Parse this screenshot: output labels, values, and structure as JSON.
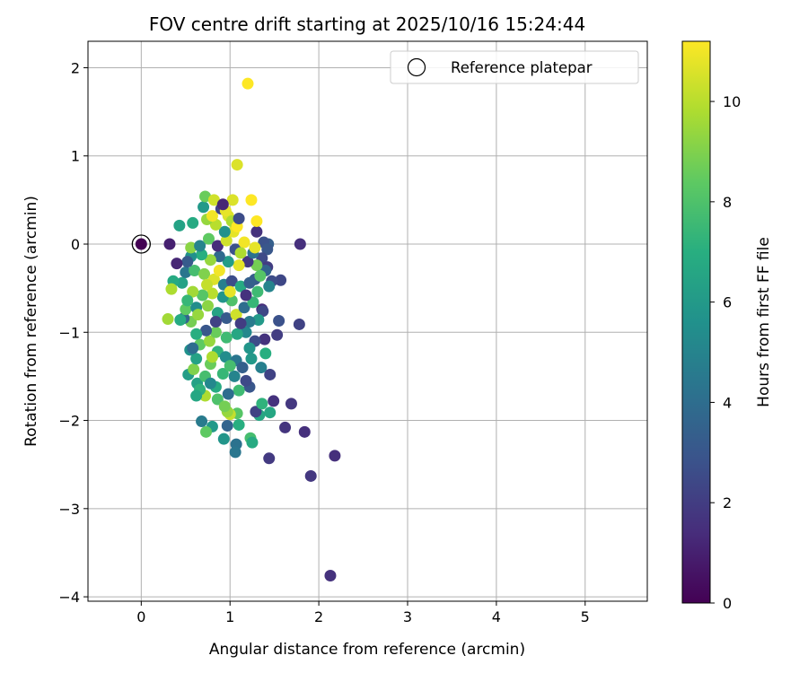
{
  "chart_data": {
    "type": "scatter",
    "title": "FOV centre drift starting at 2025/10/16 15:24:44",
    "xlabel": "Angular distance from reference (arcmin)",
    "ylabel": "Rotation from reference (arcmin)",
    "xlim": [
      -0.6,
      5.7
    ],
    "ylim": [
      -4.05,
      2.3
    ],
    "xticks": [
      0,
      1,
      2,
      3,
      4,
      5
    ],
    "yticks": [
      -4,
      -3,
      -2,
      -1,
      0,
      1,
      2
    ],
    "xtick_labels": [
      "0",
      "1",
      "2",
      "3",
      "4",
      "5"
    ],
    "ytick_labels": [
      "−4",
      "−3",
      "−2",
      "−1",
      "0",
      "1",
      "2"
    ],
    "grid": true,
    "legend": {
      "position": "top-right",
      "label": "Reference platepar"
    },
    "reference_point": {
      "x": 0,
      "y": 0
    },
    "colorbar": {
      "label": "Hours from first FF file",
      "colormap": "viridis",
      "range": [
        0,
        11.2
      ],
      "ticks": [
        0,
        2,
        4,
        6,
        8,
        10
      ],
      "tick_labels": [
        "0",
        "2",
        "4",
        "6",
        "8",
        "10"
      ]
    },
    "points": [
      {
        "x": 0.0,
        "y": 0.0,
        "h": 0.0
      },
      {
        "x": 0.32,
        "y": 0.0,
        "h": 1.0
      },
      {
        "x": 1.79,
        "y": 0.0,
        "h": 1.5
      },
      {
        "x": 2.13,
        "y": -3.76,
        "h": 1.6
      },
      {
        "x": 2.18,
        "y": -2.4,
        "h": 1.5
      },
      {
        "x": 1.91,
        "y": -2.63,
        "h": 1.8
      },
      {
        "x": 1.84,
        "y": -2.13,
        "h": 1.5
      },
      {
        "x": 1.44,
        "y": -2.43,
        "h": 1.9
      },
      {
        "x": 1.62,
        "y": -2.08,
        "h": 1.7
      },
      {
        "x": 1.69,
        "y": -1.81,
        "h": 1.8
      },
      {
        "x": 1.49,
        "y": -1.78,
        "h": 1.6
      },
      {
        "x": 1.78,
        "y": -0.91,
        "h": 2.2
      },
      {
        "x": 1.53,
        "y": -1.03,
        "h": 2.0
      },
      {
        "x": 1.57,
        "y": -0.41,
        "h": 2.4
      },
      {
        "x": 1.55,
        "y": -0.87,
        "h": 2.8
      },
      {
        "x": 1.45,
        "y": -1.48,
        "h": 2.2
      },
      {
        "x": 1.39,
        "y": -1.08,
        "h": 1.6
      },
      {
        "x": 1.43,
        "y": 0.0,
        "h": 3.4
      },
      {
        "x": 1.38,
        "y": 0.02,
        "h": 2.8
      },
      {
        "x": 1.42,
        "y": -0.06,
        "h": 3.0
      },
      {
        "x": 1.3,
        "y": 0.14,
        "h": 1.6
      },
      {
        "x": 1.36,
        "y": -0.16,
        "h": 2.5
      },
      {
        "x": 1.42,
        "y": -0.26,
        "h": 2.0
      },
      {
        "x": 1.28,
        "y": -0.4,
        "h": 3.2
      },
      {
        "x": 1.47,
        "y": -0.42,
        "h": 2.6
      },
      {
        "x": 1.36,
        "y": -0.74,
        "h": 1.4
      },
      {
        "x": 1.33,
        "y": -1.94,
        "h": 6.6
      },
      {
        "x": 1.45,
        "y": -1.91,
        "h": 6.6
      },
      {
        "x": 1.29,
        "y": -1.9,
        "h": 2.2
      },
      {
        "x": 1.36,
        "y": -1.81,
        "h": 7.2
      },
      {
        "x": 1.22,
        "y": -1.62,
        "h": 3.0
      },
      {
        "x": 1.23,
        "y": -2.2,
        "h": 7.8
      },
      {
        "x": 1.25,
        "y": -2.25,
        "h": 6.8
      },
      {
        "x": 1.07,
        "y": -2.27,
        "h": 4.2
      },
      {
        "x": 1.06,
        "y": -2.36,
        "h": 4.4
      },
      {
        "x": 0.93,
        "y": -2.21,
        "h": 5.8
      },
      {
        "x": 0.97,
        "y": -2.06,
        "h": 3.6
      },
      {
        "x": 0.8,
        "y": -2.07,
        "h": 6.0
      },
      {
        "x": 0.73,
        "y": -2.13,
        "h": 8.4
      },
      {
        "x": 0.68,
        "y": -2.01,
        "h": 4.6
      },
      {
        "x": 1.08,
        "y": -1.92,
        "h": 8.2
      },
      {
        "x": 1.0,
        "y": -1.93,
        "h": 10.2
      },
      {
        "x": 1.1,
        "y": -2.05,
        "h": 7.0
      },
      {
        "x": 0.97,
        "y": -1.9,
        "h": 9.4
      },
      {
        "x": 0.86,
        "y": -1.76,
        "h": 8.0
      },
      {
        "x": 0.72,
        "y": -1.72,
        "h": 9.8
      },
      {
        "x": 0.63,
        "y": -1.58,
        "h": 6.4
      },
      {
        "x": 0.66,
        "y": -1.65,
        "h": 7.2
      },
      {
        "x": 0.53,
        "y": -1.48,
        "h": 6.2
      },
      {
        "x": 0.59,
        "y": -1.42,
        "h": 9.0
      },
      {
        "x": 0.78,
        "y": -1.36,
        "h": 8.6
      },
      {
        "x": 0.92,
        "y": -1.47,
        "h": 7.4
      },
      {
        "x": 1.05,
        "y": -1.5,
        "h": 5.0
      },
      {
        "x": 1.18,
        "y": -1.55,
        "h": 2.5
      },
      {
        "x": 1.1,
        "y": -1.66,
        "h": 7.6
      },
      {
        "x": 0.98,
        "y": -1.7,
        "h": 4.0
      },
      {
        "x": 0.84,
        "y": -1.62,
        "h": 6.8
      },
      {
        "x": 0.72,
        "y": -1.5,
        "h": 7.8
      },
      {
        "x": 0.62,
        "y": -1.3,
        "h": 6.4
      },
      {
        "x": 0.55,
        "y": -1.2,
        "h": 5.6
      },
      {
        "x": 0.66,
        "y": -1.14,
        "h": 8.4
      },
      {
        "x": 0.77,
        "y": -1.1,
        "h": 9.4
      },
      {
        "x": 0.86,
        "y": -1.22,
        "h": 7.2
      },
      {
        "x": 0.95,
        "y": -1.28,
        "h": 5.4
      },
      {
        "x": 1.07,
        "y": -1.32,
        "h": 4.4
      },
      {
        "x": 1.14,
        "y": -1.4,
        "h": 3.4
      },
      {
        "x": 1.24,
        "y": -1.3,
        "h": 6.0
      },
      {
        "x": 1.35,
        "y": -1.4,
        "h": 4.8
      },
      {
        "x": 1.4,
        "y": -1.24,
        "h": 7.0
      },
      {
        "x": 1.28,
        "y": -1.1,
        "h": 2.6
      },
      {
        "x": 1.18,
        "y": -1.0,
        "h": 5.2
      },
      {
        "x": 1.08,
        "y": -1.02,
        "h": 6.6
      },
      {
        "x": 0.96,
        "y": -1.06,
        "h": 7.6
      },
      {
        "x": 0.84,
        "y": -1.0,
        "h": 8.6
      },
      {
        "x": 0.73,
        "y": -0.98,
        "h": 3.0
      },
      {
        "x": 0.62,
        "y": -1.02,
        "h": 7.0
      },
      {
        "x": 0.56,
        "y": -0.88,
        "h": 8.8
      },
      {
        "x": 0.48,
        "y": -0.84,
        "h": 3.6
      },
      {
        "x": 0.44,
        "y": -0.86,
        "h": 6.8
      },
      {
        "x": 0.3,
        "y": -0.85,
        "h": 9.6
      },
      {
        "x": 0.5,
        "y": -0.74,
        "h": 8.4
      },
      {
        "x": 0.62,
        "y": -0.72,
        "h": 5.4
      },
      {
        "x": 0.75,
        "y": -0.7,
        "h": 9.2
      },
      {
        "x": 0.86,
        "y": -0.78,
        "h": 6.4
      },
      {
        "x": 0.96,
        "y": -0.84,
        "h": 3.2
      },
      {
        "x": 1.07,
        "y": -0.8,
        "h": 10.4
      },
      {
        "x": 1.16,
        "y": -0.72,
        "h": 4.0
      },
      {
        "x": 1.26,
        "y": -0.66,
        "h": 7.4
      },
      {
        "x": 1.37,
        "y": -0.76,
        "h": 2.4
      },
      {
        "x": 1.32,
        "y": -0.86,
        "h": 6.0
      },
      {
        "x": 1.22,
        "y": -0.88,
        "h": 4.6
      },
      {
        "x": 1.12,
        "y": -0.9,
        "h": 2.0
      },
      {
        "x": 1.02,
        "y": -0.64,
        "h": 8.0
      },
      {
        "x": 0.92,
        "y": -0.6,
        "h": 5.8
      },
      {
        "x": 0.8,
        "y": -0.56,
        "h": 10.0
      },
      {
        "x": 0.69,
        "y": -0.58,
        "h": 8.2
      },
      {
        "x": 0.58,
        "y": -0.54,
        "h": 9.6
      },
      {
        "x": 0.46,
        "y": -0.44,
        "h": 6.4
      },
      {
        "x": 0.36,
        "y": -0.42,
        "h": 6.8
      },
      {
        "x": 0.34,
        "y": -0.51,
        "h": 9.8
      },
      {
        "x": 0.5,
        "y": -0.32,
        "h": 4.4
      },
      {
        "x": 0.6,
        "y": -0.3,
        "h": 7.8
      },
      {
        "x": 0.71,
        "y": -0.34,
        "h": 9.0
      },
      {
        "x": 0.82,
        "y": -0.4,
        "h": 10.6
      },
      {
        "x": 0.93,
        "y": -0.46,
        "h": 4.8
      },
      {
        "x": 1.02,
        "y": -0.42,
        "h": 2.6
      },
      {
        "x": 1.12,
        "y": -0.48,
        "h": 6.8
      },
      {
        "x": 1.22,
        "y": -0.44,
        "h": 3.4
      },
      {
        "x": 1.31,
        "y": -0.54,
        "h": 7.6
      },
      {
        "x": 1.44,
        "y": -0.48,
        "h": 5.0
      },
      {
        "x": 1.4,
        "y": -0.3,
        "h": 3.6
      },
      {
        "x": 1.3,
        "y": -0.24,
        "h": 8.8
      },
      {
        "x": 1.2,
        "y": -0.2,
        "h": 1.8
      },
      {
        "x": 1.1,
        "y": -0.24,
        "h": 10.8
      },
      {
        "x": 0.98,
        "y": -0.2,
        "h": 6.2
      },
      {
        "x": 0.88,
        "y": -0.14,
        "h": 3.8
      },
      {
        "x": 0.78,
        "y": -0.18,
        "h": 9.4
      },
      {
        "x": 0.68,
        "y": -0.12,
        "h": 7.0
      },
      {
        "x": 0.56,
        "y": -0.14,
        "h": 5.6
      },
      {
        "x": 0.52,
        "y": -0.2,
        "h": 3.2
      },
      {
        "x": 0.4,
        "y": -0.22,
        "h": 1.2
      },
      {
        "x": 0.56,
        "y": -0.04,
        "h": 9.2
      },
      {
        "x": 0.66,
        "y": -0.02,
        "h": 5.0
      },
      {
        "x": 0.76,
        "y": 0.06,
        "h": 8.4
      },
      {
        "x": 0.86,
        "y": -0.02,
        "h": 1.4
      },
      {
        "x": 0.96,
        "y": 0.04,
        "h": 10.4
      },
      {
        "x": 1.06,
        "y": -0.06,
        "h": 2.8
      },
      {
        "x": 1.16,
        "y": 0.02,
        "h": 11.0
      },
      {
        "x": 1.26,
        "y": -0.1,
        "h": 4.2
      },
      {
        "x": 1.04,
        "y": 0.14,
        "h": 10.8
      },
      {
        "x": 0.94,
        "y": 0.14,
        "h": 5.6
      },
      {
        "x": 0.84,
        "y": 0.22,
        "h": 10.0
      },
      {
        "x": 0.74,
        "y": 0.28,
        "h": 9.4
      },
      {
        "x": 0.58,
        "y": 0.24,
        "h": 6.8
      },
      {
        "x": 0.43,
        "y": 0.21,
        "h": 6.4
      },
      {
        "x": 0.7,
        "y": 0.42,
        "h": 6.0
      },
      {
        "x": 0.8,
        "y": 0.32,
        "h": 11.0
      },
      {
        "x": 0.9,
        "y": 0.4,
        "h": 2.2
      },
      {
        "x": 0.98,
        "y": 0.32,
        "h": 10.6
      },
      {
        "x": 1.02,
        "y": 0.26,
        "h": 9.8
      },
      {
        "x": 1.08,
        "y": 0.2,
        "h": 11.2
      },
      {
        "x": 0.95,
        "y": 0.38,
        "h": 10.8
      },
      {
        "x": 0.72,
        "y": 0.54,
        "h": 8.6
      },
      {
        "x": 0.82,
        "y": 0.5,
        "h": 10.4
      },
      {
        "x": 1.03,
        "y": 0.5,
        "h": 10.6
      },
      {
        "x": 1.24,
        "y": 0.5,
        "h": 11.2
      },
      {
        "x": 1.1,
        "y": 0.29,
        "h": 2.6
      },
      {
        "x": 1.3,
        "y": 0.26,
        "h": 11.2
      },
      {
        "x": 0.92,
        "y": 0.45,
        "h": 1.2
      },
      {
        "x": 1.08,
        "y": 0.9,
        "h": 10.6
      },
      {
        "x": 1.2,
        "y": 1.82,
        "h": 11.2
      },
      {
        "x": 1.28,
        "y": -0.04,
        "h": 10.8
      },
      {
        "x": 1.12,
        "y": -0.1,
        "h": 9.8
      },
      {
        "x": 0.88,
        "y": -0.3,
        "h": 11.0
      },
      {
        "x": 0.74,
        "y": -0.46,
        "h": 10.2
      },
      {
        "x": 0.64,
        "y": -0.8,
        "h": 9.4
      },
      {
        "x": 0.8,
        "y": -1.28,
        "h": 9.8
      },
      {
        "x": 0.94,
        "y": -1.84,
        "h": 8.8
      },
      {
        "x": 0.62,
        "y": -1.72,
        "h": 6.6
      },
      {
        "x": 0.58,
        "y": -1.18,
        "h": 4.0
      },
      {
        "x": 0.84,
        "y": -0.88,
        "h": 2.2
      },
      {
        "x": 1.18,
        "y": -0.58,
        "h": 1.6
      },
      {
        "x": 1.34,
        "y": -0.36,
        "h": 8.2
      },
      {
        "x": 1.0,
        "y": -0.54,
        "h": 10.8
      },
      {
        "x": 0.52,
        "y": -0.64,
        "h": 7.4
      },
      {
        "x": 0.78,
        "y": -1.58,
        "h": 5.2
      },
      {
        "x": 1.0,
        "y": -1.38,
        "h": 7.8
      },
      {
        "x": 1.22,
        "y": -1.18,
        "h": 5.8
      }
    ]
  }
}
